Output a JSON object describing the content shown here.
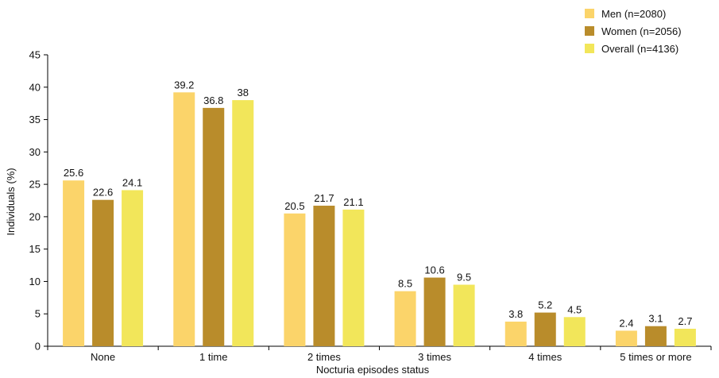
{
  "chart_data": {
    "type": "bar",
    "title": "",
    "xlabel": "Nocturia episodes status",
    "ylabel": "Individuals (%)",
    "ylim": [
      0,
      45
    ],
    "yticks": [
      0,
      5,
      10,
      15,
      20,
      25,
      30,
      35,
      40,
      45
    ],
    "categories": [
      "None",
      "1 time",
      "2 times",
      "3 times",
      "4 times",
      "5 times or more"
    ],
    "series": [
      {
        "name": "Men (n=2080)",
        "color": "#FBD46A",
        "values": [
          25.6,
          39.2,
          20.5,
          8.5,
          3.8,
          2.4
        ]
      },
      {
        "name": "Women (n=2056)",
        "color": "#B98C2B",
        "values": [
          22.6,
          36.8,
          21.7,
          10.6,
          5.2,
          3.1
        ]
      },
      {
        "name": "Overall (n=4136)",
        "color": "#F2E65A",
        "values": [
          24.1,
          38,
          21.1,
          9.5,
          4.5,
          2.7
        ]
      }
    ],
    "legend_position": "top-right",
    "grid": false
  }
}
